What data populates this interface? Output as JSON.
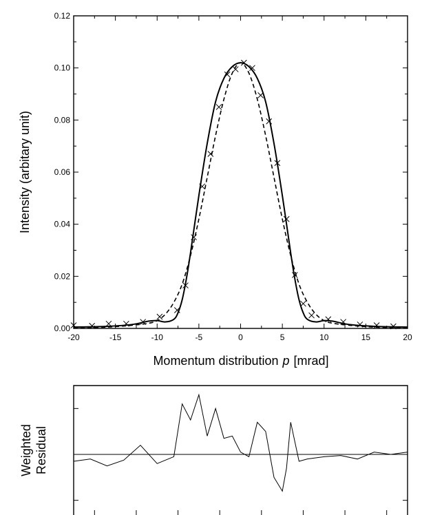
{
  "chart_data": [
    {
      "type": "line",
      "title": "",
      "xlabel": "Momentum distribution",
      "xlabel_symbol": "p",
      "xlabel_unit": "[mrad]",
      "ylabel": "Intensity (arbitary unit)",
      "xlim": [
        -20,
        20
      ],
      "ylim": [
        0,
        0.12
      ],
      "x_ticks": [
        "-20",
        "-15",
        "-10",
        "-5",
        "0",
        "5",
        "10",
        "15",
        "20"
      ],
      "y_ticks": [
        "0.00",
        "0.02",
        "0.04",
        "0.06",
        "0.08",
        "0.10",
        "0.12"
      ],
      "grid": false,
      "legend": "none",
      "series": [
        {
          "style": "solid",
          "x": [
            -20,
            -16,
            -13,
            -11,
            -10,
            -9,
            -8,
            -7.5,
            -7,
            -6.5,
            -6,
            -5,
            -4,
            -3,
            -2,
            -1,
            0,
            1,
            2,
            3,
            4,
            5,
            6,
            6.5,
            7,
            7.5,
            8,
            9,
            10,
            11,
            13,
            16,
            20
          ],
          "y": [
            0.0005,
            0.0008,
            0.0015,
            0.0028,
            0.003,
            0.0025,
            0.0035,
            0.006,
            0.011,
            0.019,
            0.029,
            0.051,
            0.071,
            0.087,
            0.096,
            0.1005,
            0.102,
            0.1005,
            0.096,
            0.087,
            0.071,
            0.051,
            0.029,
            0.019,
            0.011,
            0.006,
            0.0035,
            0.0025,
            0.003,
            0.0028,
            0.0015,
            0.0008,
            0.0005
          ]
        },
        {
          "style": "dashed",
          "x": [
            -20,
            -16,
            -13,
            -11,
            -10,
            -9,
            -8,
            -7,
            -6,
            -5,
            -4,
            -3,
            -2,
            -1,
            0,
            1,
            2,
            3,
            4,
            5,
            6,
            7,
            8,
            9,
            10,
            11,
            13,
            16,
            20
          ],
          "y": [
            0.0002,
            0.0005,
            0.0012,
            0.002,
            0.003,
            0.0055,
            0.01,
            0.017,
            0.028,
            0.042,
            0.058,
            0.074,
            0.088,
            0.098,
            0.102,
            0.098,
            0.088,
            0.074,
            0.058,
            0.042,
            0.028,
            0.017,
            0.01,
            0.0055,
            0.003,
            0.002,
            0.0012,
            0.0005,
            0.0002
          ]
        },
        {
          "style": "markers-x",
          "x": [
            -20,
            -17.8,
            -15.8,
            -13.7,
            -11.7,
            -9.7,
            -7.6,
            -6.6,
            -5.6,
            -4.6,
            -3.6,
            -2.6,
            -1.6,
            -0.6,
            0.4,
            1.4,
            2.4,
            3.4,
            4.4,
            5.5,
            6.5,
            7.5,
            8.5,
            10.5,
            12.3,
            14.3,
            16.3,
            18.3
          ],
          "y": [
            0.0012,
            0.001,
            0.0018,
            0.0018,
            0.0025,
            0.0045,
            0.007,
            0.0165,
            0.035,
            0.0545,
            0.067,
            0.085,
            0.0975,
            0.0995,
            0.102,
            0.1,
            0.0895,
            0.0795,
            0.0635,
            0.042,
            0.0205,
            0.0095,
            0.005,
            0.0035,
            0.0025,
            0.0015,
            0.0012,
            0.0008
          ]
        }
      ]
    },
    {
      "type": "line",
      "title": "",
      "ylabel_line1": "Weighted",
      "ylabel_line2": "Residual",
      "xlim": [
        -20,
        20
      ],
      "ylim": [
        -3,
        3
      ],
      "zero_line": 0,
      "grid": false,
      "legend": "none",
      "series": [
        {
          "style": "solid",
          "x": [
            -20,
            -18,
            -16,
            -14,
            -12,
            -10,
            -8,
            -7,
            -6,
            -5,
            -4,
            -3,
            -2,
            -1,
            0,
            1,
            2,
            3,
            4,
            5,
            5.5,
            6,
            7,
            8,
            10,
            12,
            14,
            16,
            18,
            20
          ],
          "y": [
            -0.3,
            -0.2,
            -0.5,
            -0.25,
            0.4,
            -0.4,
            -0.1,
            2.2,
            1.5,
            2.6,
            0.8,
            2.0,
            0.7,
            0.8,
            0.1,
            -0.1,
            1.4,
            1.0,
            -1.0,
            -1.6,
            -0.6,
            1.4,
            -0.3,
            -0.2,
            -0.1,
            -0.05,
            -0.2,
            0.1,
            0.0,
            0.1
          ]
        }
      ]
    }
  ]
}
